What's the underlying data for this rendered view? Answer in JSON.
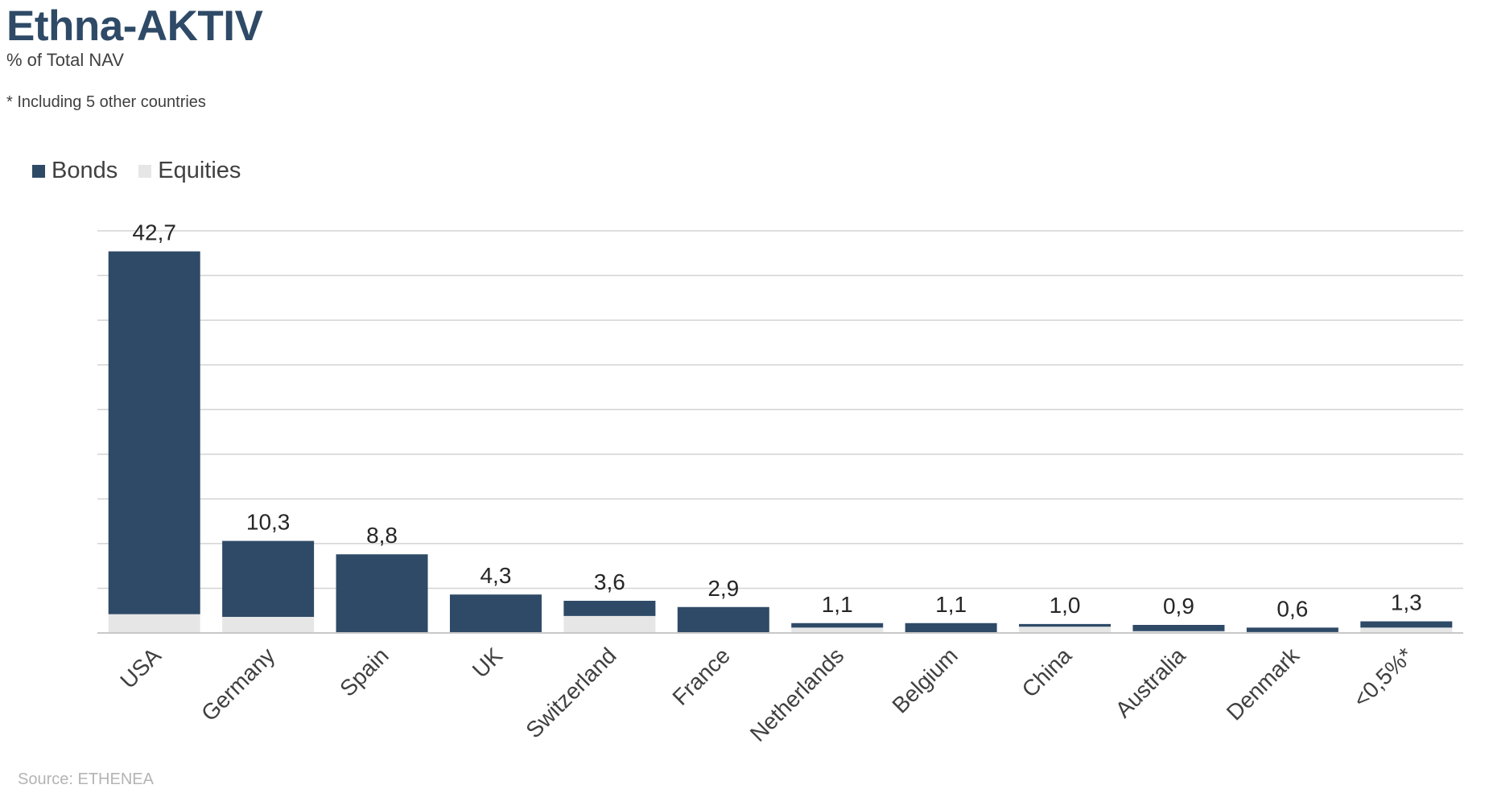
{
  "header": {
    "title": "Ethna-AKTIV",
    "subtitle": "% of Total NAV",
    "footnote": "* Including 5 other countries"
  },
  "source": "Source: ETHENEA",
  "colors": {
    "bonds": "#2e4a67",
    "equities": "#e6e6e6",
    "grid": "#d3d3d3",
    "title": "#2e4a67"
  },
  "chart_data": {
    "type": "bar",
    "stacked": true,
    "categories": [
      "USA",
      "Germany",
      "Spain",
      "UK",
      "Switzerland",
      "France",
      "Netherlands",
      "Belgium",
      "China",
      "Australia",
      "Denmark",
      "<0,5%*"
    ],
    "series": [
      {
        "name": "Bonds",
        "values": [
          40.6,
          8.5,
          8.8,
          4.3,
          1.7,
          2.9,
          0.5,
          1.1,
          0.3,
          0.7,
          0.5,
          0.7
        ]
      },
      {
        "name": "Equities",
        "values": [
          2.1,
          1.8,
          0.0,
          0.0,
          1.9,
          0.0,
          0.6,
          0.0,
          0.7,
          0.2,
          0.1,
          0.6
        ]
      }
    ],
    "totals": [
      "42,7",
      "10,3",
      "8,8",
      "4,3",
      "3,6",
      "2,9",
      "1,1",
      "1,1",
      "1,0",
      "0,9",
      "0,6",
      "1,3"
    ],
    "ylim": [
      0,
      45
    ],
    "grid": true,
    "legend_position": "top-left",
    "xlabel": "",
    "ylabel": ""
  }
}
